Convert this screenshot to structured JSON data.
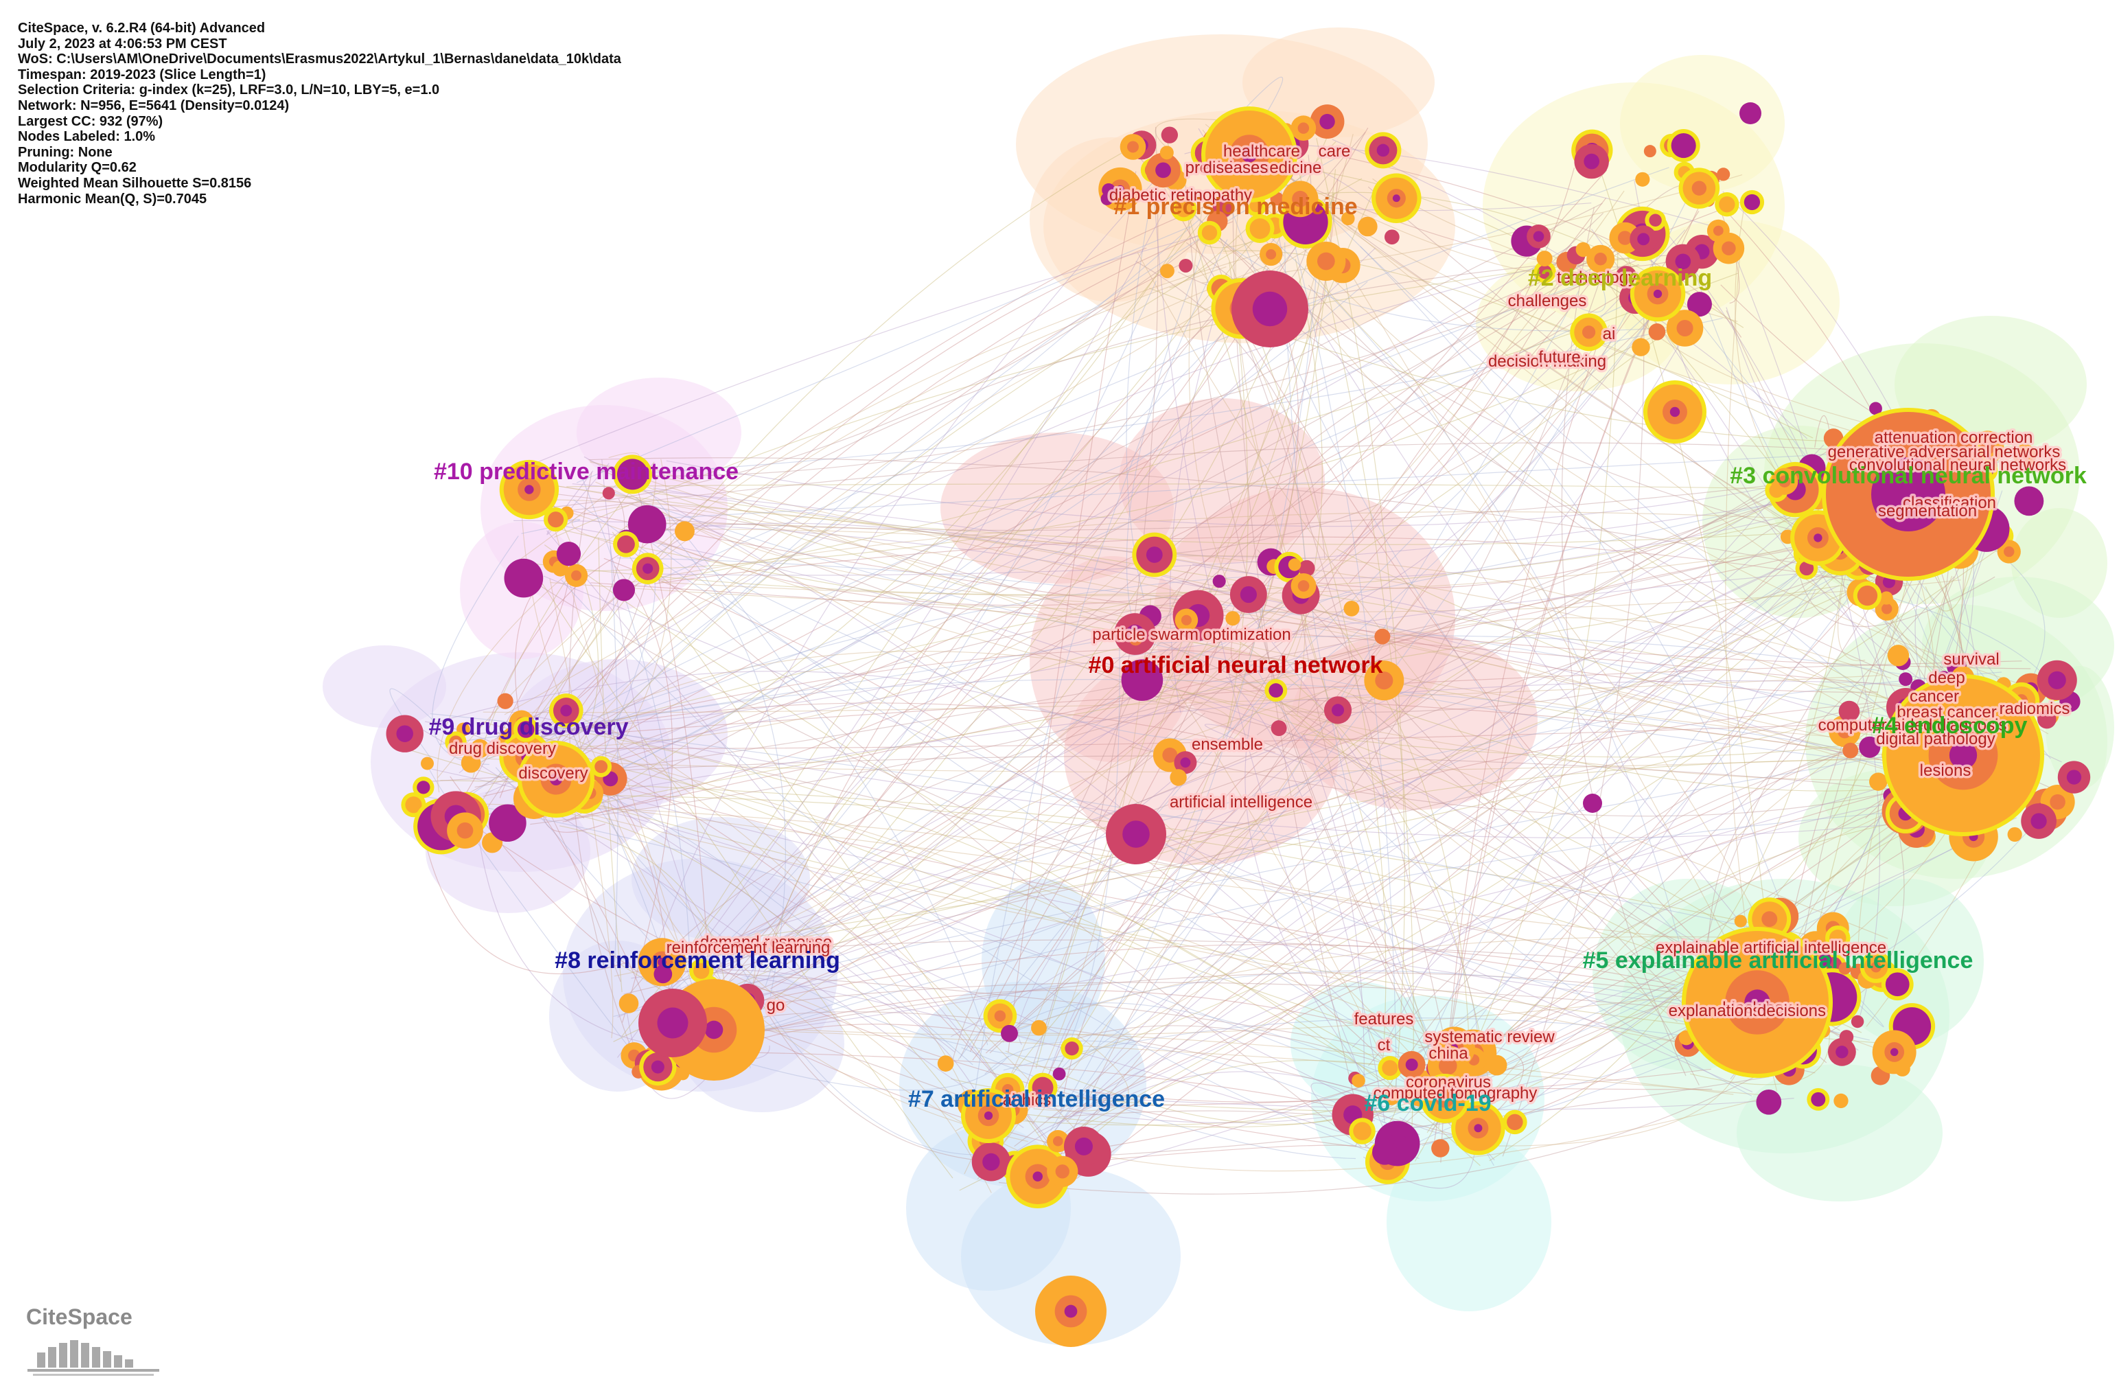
{
  "info": {
    "lines": [
      "CiteSpace, v. 6.2.R4 (64-bit) Advanced",
      "July 2, 2023 at 4:06:53 PM CEST",
      "WoS: C:\\Users\\AM\\OneDrive\\Documents\\Erasmus2022\\Artykul_1\\Bernas\\dane\\data_10k\\data",
      "Timespan: 2019-2023 (Slice Length=1)",
      "Selection Criteria: g-index (k=25), LRF=3.0, L/N=10, LBY=5, e=1.0",
      "Network: N=956, E=5641 (Density=0.0124)",
      "Largest CC: 932 (97%)",
      "Nodes Labeled: 1.0%",
      "Pruning: None",
      "Modularity Q=0.62",
      "Weighted Mean Silhouette S=0.8156",
      "Harmonic Mean(Q, S)=0.7045"
    ]
  },
  "logo": {
    "text": "CiteSpace"
  },
  "colors": {
    "node_yellow": "#f5e21b",
    "node_orange": "#fbaa2f",
    "node_dark_orange": "#ee7b41",
    "node_crimson": "#cf4568",
    "node_purple": "#a8208e",
    "edge": "#b07a7a"
  },
  "clusters": [
    {
      "id": "c0",
      "label": "#0 artificial neural network",
      "color": "#c00000",
      "hull": "#f8c9c9",
      "keywords": [
        "particle swarm optimization",
        "ensemble",
        "artificial intelligence"
      ]
    },
    {
      "id": "c1",
      "label": "#1 precision medicine",
      "color": "#d86a1e",
      "hull": "#fde0c4",
      "keywords": [
        "healthcare",
        "care",
        "precision medicine",
        "diseases",
        "diabetic retinopathy"
      ]
    },
    {
      "id": "c2",
      "label": "#2 deep learning",
      "color": "#b5b814",
      "hull": "#faf6c4",
      "keywords": [
        "technology",
        "challenges",
        "ai",
        "decision making",
        "future"
      ]
    },
    {
      "id": "c3",
      "label": "#3 convolutional neural network",
      "color": "#4cb31d",
      "hull": "#def6cc",
      "keywords": [
        "attenuation correction",
        "generative adversarial networks",
        "convolutional neural networks",
        "classification",
        "segmentation"
      ]
    },
    {
      "id": "c4",
      "label": "#4 endoscopy",
      "color": "#2faa1c",
      "hull": "#d8f6d2",
      "keywords": [
        "survival",
        "deep",
        "cancer",
        "breast cancer",
        "radiomics",
        "computer-aided diagnosis",
        "digital pathology",
        "lesions"
      ]
    },
    {
      "id": "c5",
      "label": "#5 explainable artificial intelligence",
      "color": "#19a85a",
      "hull": "#d2f6de",
      "keywords": [
        "explainable artificial intelligence",
        "black box",
        "explanations",
        "decisions"
      ]
    },
    {
      "id": "c6",
      "label": "#6 covid-19",
      "color": "#1aa6a0",
      "hull": "#cdf6f3",
      "keywords": [
        "features",
        "ct",
        "systematic review",
        "china",
        "coronavirus",
        "computed tomography"
      ]
    },
    {
      "id": "c7",
      "label": "#7 artificial intelligence",
      "color": "#1661b0",
      "hull": "#d0e4f8",
      "keywords": [
        "ethics",
        "ai"
      ]
    },
    {
      "id": "c8",
      "label": "#8 reinforcement learning",
      "color": "#16169c",
      "hull": "#dcdcf6",
      "keywords": [
        "demand response",
        "reinforcement learning",
        "go"
      ]
    },
    {
      "id": "c9",
      "label": "#9 drug discovery",
      "color": "#5a1aa8",
      "hull": "#e6d8f6",
      "keywords": [
        "drug discovery",
        "discovery"
      ]
    },
    {
      "id": "c10",
      "label": "#10 predictive maintenance",
      "color": "#a81aa8",
      "hull": "#f6d8f6",
      "keywords": []
    }
  ]
}
